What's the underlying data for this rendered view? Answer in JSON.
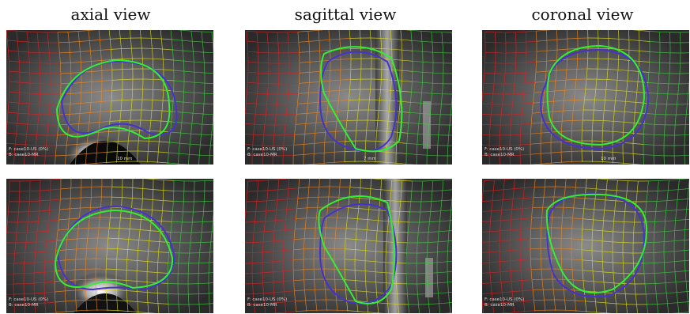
{
  "titles": {
    "axial": "axial view",
    "sagittal": "sagittal view",
    "coronal": "coronal view"
  },
  "panels": {
    "axial_top": {
      "cap1": "F: case10-US (0%)",
      "cap2": "B: case10-MR",
      "scale": "10 mm"
    },
    "sagittal_top": {
      "cap1": "F: case10-US (0%)",
      "cap2": "B: case10-MR",
      "scale": "7 mm"
    },
    "coronal_top": {
      "cap1": "F: case10-US (0%)",
      "cap2": "B: case10-MR",
      "scale": "10 mm"
    },
    "axial_bot": {
      "cap1": "F: case10-US (0%)",
      "cap2": "B: case10-MR"
    },
    "sagittal_bot": {
      "cap1": "F: case10-US (0%)",
      "cap2": "B: case10-MR"
    },
    "coronal_bot": {
      "cap1": "F: case10-US (0%)",
      "cap2": "B: case10-MR"
    }
  },
  "colors": {
    "contour_green": "#33ee33",
    "contour_blue": "#4433cc",
    "grid_red": "#dd2222",
    "grid_orange": "#ee8822",
    "grid_yellow": "#dddd22",
    "grid_green": "#44cc44"
  }
}
